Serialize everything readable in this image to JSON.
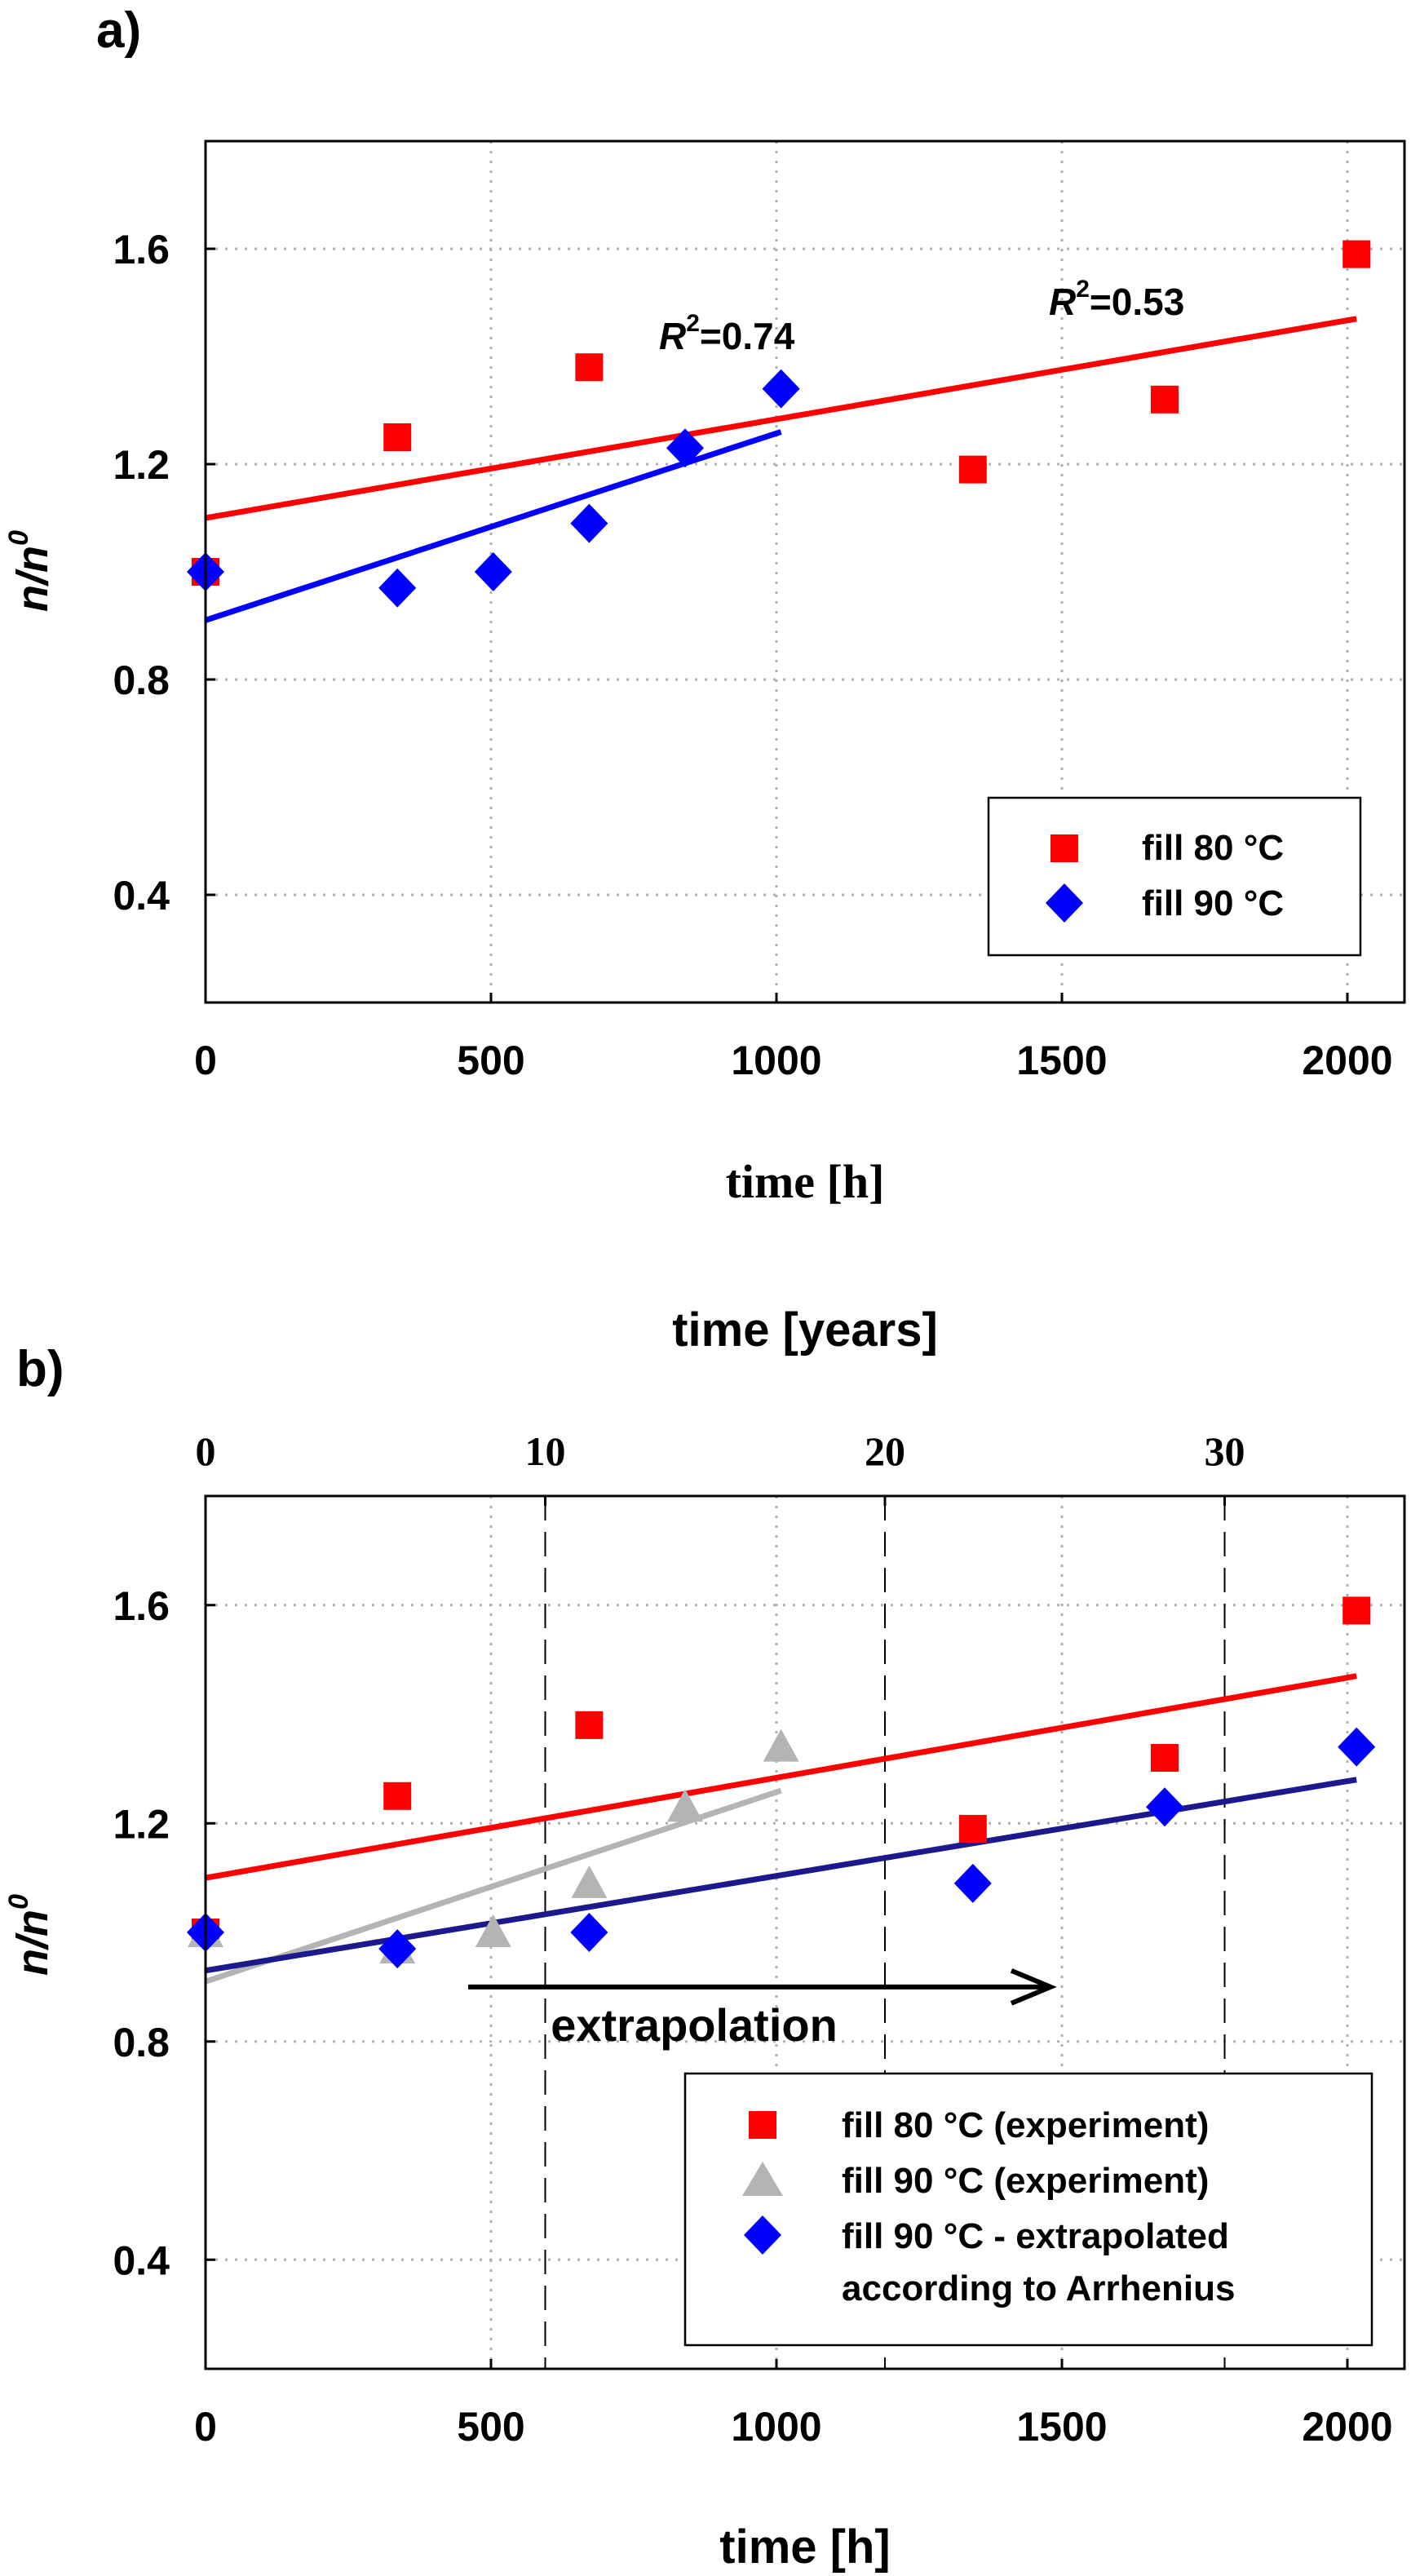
{
  "colors": {
    "red": "#ff0000",
    "blue": "#0000ff",
    "gray": "#b4b4b4",
    "navy": "#1a1a8c",
    "grid": "#b0b0b0",
    "black": "#000000"
  },
  "chart_data": [
    {
      "panel_label": "a)",
      "type": "scatter",
      "title": "",
      "xlabel": "time [h]",
      "ylabel_base": "n/n",
      "ylabel_sup": "0",
      "xlim": [
        0,
        2100
      ],
      "ylim": [
        0.2,
        1.8
      ],
      "xticks": [
        0,
        500,
        1000,
        1500,
        2000
      ],
      "yticks": [
        0.4,
        0.8,
        1.2,
        1.6
      ],
      "ytick_labels": [
        "0.4",
        "0.8",
        "1.2",
        "1.6"
      ],
      "grid": true,
      "series": [
        {
          "name": "fill 80 °C",
          "marker": "square",
          "color": "#ff0000",
          "x": [
            0,
            336,
            672,
            1344,
            1680,
            2016
          ],
          "y": [
            1.0,
            1.25,
            1.38,
            1.19,
            1.32,
            1.59
          ]
        },
        {
          "name": "fill 90 °C",
          "marker": "diamond",
          "color": "#0000ff",
          "x": [
            0,
            336,
            504,
            672,
            840,
            1008
          ],
          "y": [
            1.0,
            0.97,
            1.0,
            1.09,
            1.23,
            1.34
          ]
        }
      ],
      "trendlines": [
        {
          "color": "#ff0000",
          "x": [
            0,
            2016
          ],
          "y": [
            1.1,
            1.47
          ],
          "r2_base": "R",
          "r2_sup": "2",
          "r2_value": "=0.53"
        },
        {
          "color": "#0000ff",
          "x": [
            0,
            1008
          ],
          "y": [
            0.91,
            1.26
          ],
          "r2_base": "R",
          "r2_sup": "2",
          "r2_value": "=0.74"
        }
      ],
      "legend": {
        "position": "bottom-right"
      }
    },
    {
      "panel_label": "b)",
      "type": "scatter",
      "title": "",
      "xlabel": "time [h]",
      "x2label": "time [years]",
      "ylabel_base": "n/n",
      "ylabel_sup": "0",
      "xlim": [
        0,
        2100
      ],
      "ylim": [
        0.2,
        1.8
      ],
      "xticks": [
        0,
        500,
        1000,
        1500,
        2000
      ],
      "x2ticks": [
        0,
        10,
        20,
        30
      ],
      "x2_reference_hours": [
        0,
        595,
        1190,
        1785
      ],
      "yticks": [
        0.4,
        0.8,
        1.2,
        1.6
      ],
      "ytick_labels": [
        "0.4",
        "0.8",
        "1.2",
        "1.6"
      ],
      "grid": true,
      "series": [
        {
          "name": "fill 80 °C (experiment)",
          "marker": "square",
          "color": "#ff0000",
          "x": [
            0,
            336,
            672,
            1344,
            1680,
            2016
          ],
          "y": [
            1.0,
            1.25,
            1.38,
            1.19,
            1.32,
            1.59
          ]
        },
        {
          "name": "fill 90 °C (experiment)",
          "marker": "triangle",
          "color": "#b4b4b4",
          "x": [
            0,
            336,
            504,
            672,
            840,
            1008
          ],
          "y": [
            1.0,
            0.97,
            1.0,
            1.09,
            1.23,
            1.34
          ]
        },
        {
          "name": "fill 90 °C - extrapolated",
          "name_line2": "according to Arrhenius",
          "marker": "diamond",
          "color": "#0000ff",
          "x": [
            0,
            336,
            672,
            1344,
            1680,
            2016
          ],
          "y": [
            1.0,
            0.97,
            1.0,
            1.09,
            1.23,
            1.34
          ]
        }
      ],
      "trendlines": [
        {
          "color": "#ff0000",
          "x": [
            0,
            2016
          ],
          "y": [
            1.1,
            1.47
          ]
        },
        {
          "color": "#b4b4b4",
          "x": [
            0,
            1008
          ],
          "y": [
            0.91,
            1.26
          ]
        },
        {
          "color": "#1a1a8c",
          "x": [
            0,
            2016
          ],
          "y": [
            0.93,
            1.28
          ]
        }
      ],
      "annotation": {
        "text": "extrapolation",
        "arrow_from_x": 460,
        "arrow_to_x": 1480,
        "arrow_y": 0.9
      },
      "legend": {
        "position": "bottom-right"
      }
    }
  ]
}
